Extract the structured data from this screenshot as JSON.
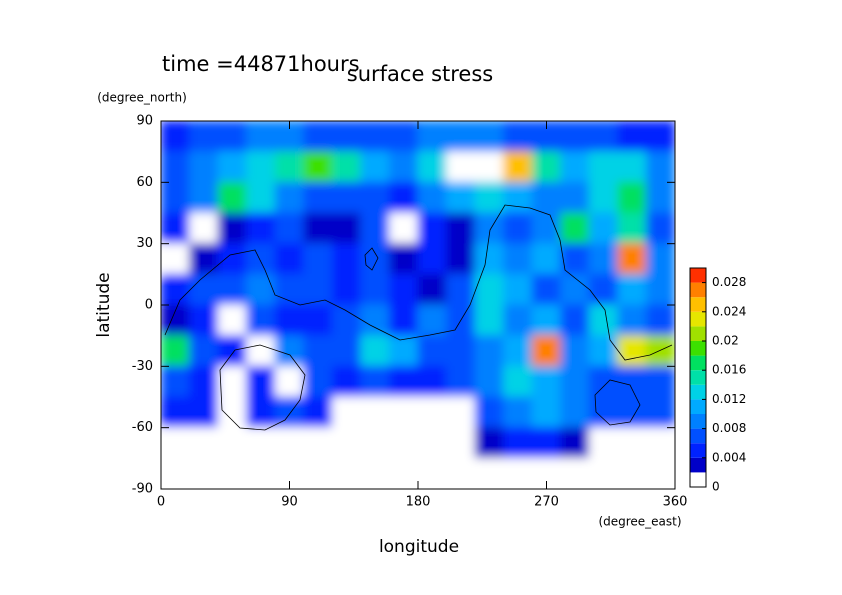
{
  "chart_data": {
    "type": "heatmap",
    "title": "surface stress",
    "annotation": "time =44871hours",
    "x_label": "longitude",
    "y_label": "latitude",
    "x_units": "(degree_east)",
    "y_units": "(degree_north)",
    "xlim": [
      0,
      360
    ],
    "ylim": [
      -90,
      90
    ],
    "xticks": [
      0,
      90,
      180,
      270,
      360
    ],
    "yticks": [
      -90,
      -60,
      -30,
      0,
      30,
      60,
      90
    ],
    "x": [
      10,
      30,
      50,
      70,
      90,
      110,
      130,
      150,
      170,
      190,
      210,
      230,
      250,
      270,
      290,
      310,
      330,
      350
    ],
    "y": [
      82.5,
      67.5,
      52.5,
      37.5,
      22.5,
      7.5,
      -7.5,
      -22.5,
      -37.5,
      -52.5,
      -67.5,
      -82.5
    ],
    "z": [
      [
        0.005,
        0.006,
        0.007,
        0.008,
        0.008,
        0.007,
        0.006,
        0.006,
        0.007,
        0.008,
        0.009,
        0.008,
        0.007,
        0.007,
        0.006,
        0.006,
        0.005,
        0.005
      ],
      [
        0.006,
        0.008,
        0.01,
        0.012,
        0.014,
        0.018,
        0.014,
        0.01,
        0.008,
        0.012,
        0.032,
        0.032,
        0.024,
        0.014,
        0.01,
        0.012,
        0.012,
        0.008
      ],
      [
        0.006,
        0.008,
        0.016,
        0.012,
        0.008,
        0.006,
        0.006,
        0.006,
        0.005,
        0.008,
        0.01,
        0.012,
        0.01,
        0.008,
        0.008,
        0.012,
        0.016,
        0.008
      ],
      [
        0.004,
        0,
        0.002,
        0.004,
        0.006,
        0.002,
        0.002,
        0.006,
        0,
        0.004,
        0.003,
        0.008,
        0.006,
        0.008,
        0.016,
        0.01,
        0.014,
        0.006
      ],
      [
        0,
        0.002,
        0.004,
        0.006,
        0.004,
        0.006,
        0.004,
        0.006,
        0.002,
        0.004,
        0.002,
        0.01,
        0.008,
        0.01,
        0.006,
        0.008,
        0.026,
        0.008
      ],
      [
        0.004,
        0.006,
        0.006,
        0.008,
        0.006,
        0.006,
        0.004,
        0.006,
        0.004,
        0.002,
        0.006,
        0.012,
        0.01,
        0.006,
        0.008,
        0.006,
        0.01,
        0.008
      ],
      [
        0.002,
        0.004,
        0,
        0.006,
        0.004,
        0.004,
        0.006,
        0.008,
        0.004,
        0.008,
        0.006,
        0.012,
        0.008,
        0.01,
        0.006,
        0.012,
        0.008,
        0.006
      ],
      [
        0.016,
        0.006,
        0.004,
        0,
        0.008,
        0.006,
        0.006,
        0.012,
        0.01,
        0.006,
        0.006,
        0.008,
        0.01,
        0.026,
        0.008,
        0.01,
        0.022,
        0.02
      ],
      [
        0.006,
        0.004,
        0,
        0.004,
        0,
        0.006,
        0.004,
        0.006,
        0.004,
        0.004,
        0.006,
        0.008,
        0.012,
        0.01,
        0.008,
        0.006,
        0.006,
        0.006
      ],
      [
        0.004,
        0.004,
        0,
        0.004,
        0.006,
        0.004,
        0,
        0,
        0,
        0,
        0,
        0.006,
        0.008,
        0.01,
        0.008,
        0.006,
        0.006,
        0.006
      ],
      [
        0,
        0,
        0,
        0,
        0,
        0,
        0,
        0,
        0,
        0,
        0,
        0.002,
        0.004,
        0.004,
        0.002,
        0,
        0,
        0
      ],
      [
        0,
        0,
        0,
        0,
        0,
        0,
        0,
        0,
        0,
        0,
        0,
        0,
        0,
        0,
        0,
        0,
        0,
        0
      ]
    ],
    "zlim": [
      0,
      0.03
    ],
    "zticks": [
      0,
      0.004,
      0.008,
      0.012,
      0.016,
      0.02,
      0.024,
      0.028
    ],
    "colors": [
      "#ffffff",
      "#0000c8",
      "#0022ff",
      "#0050ff",
      "#0080ff",
      "#00aaff",
      "#00d2e6",
      "#00e0a8",
      "#00e060",
      "#3ce000",
      "#a0e000",
      "#e6e600",
      "#ffc000",
      "#ff8000",
      "#ff3000"
    ],
    "over_color": "#ffffff"
  }
}
